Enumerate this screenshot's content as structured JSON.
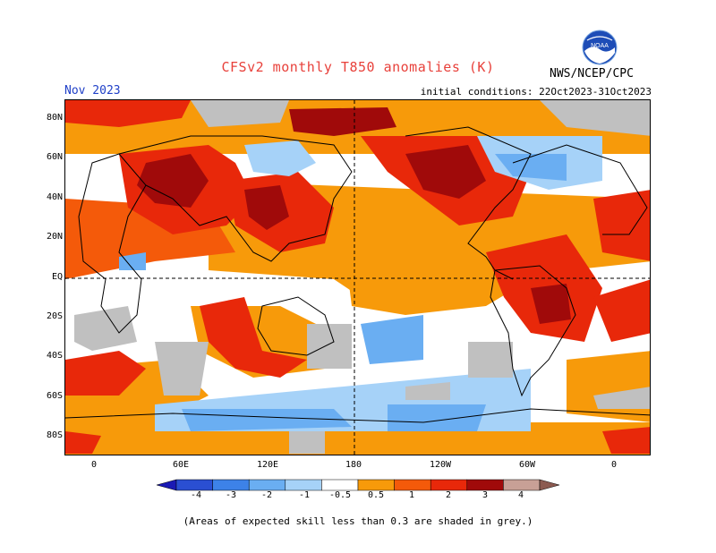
{
  "header": {
    "title": "CFSv2 monthly T850 anomalies (K)",
    "month": "Nov 2023",
    "initial_conditions": "initial conditions: 22Oct2023-31Oct2023",
    "agency": "NWS/NCEP/CPC",
    "logo_text": "NOAA"
  },
  "map": {
    "lat_labels": [
      "80N",
      "60N",
      "40N",
      "20N",
      "EQ",
      "20S",
      "40S",
      "60S",
      "80S"
    ],
    "lon_labels": [
      "0",
      "60E",
      "120E",
      "180",
      "120W",
      "60W",
      "0"
    ]
  },
  "legend": {
    "ticks": [
      "-4",
      "-3",
      "-2",
      "-1",
      "-0.5",
      "0.5",
      "1",
      "2",
      "3",
      "4"
    ],
    "colors": [
      "#1a1ab4",
      "#2a4fd2",
      "#3d82e8",
      "#6aaef2",
      "#a6d2f8",
      "#ffffff",
      "#f79a0a",
      "#f45a0a",
      "#e8280a",
      "#a00a0a",
      "#c8a096",
      "#8c5a50"
    ]
  },
  "footnote": "(Areas of expected skill less than 0.3 are shaded in grey.)"
}
